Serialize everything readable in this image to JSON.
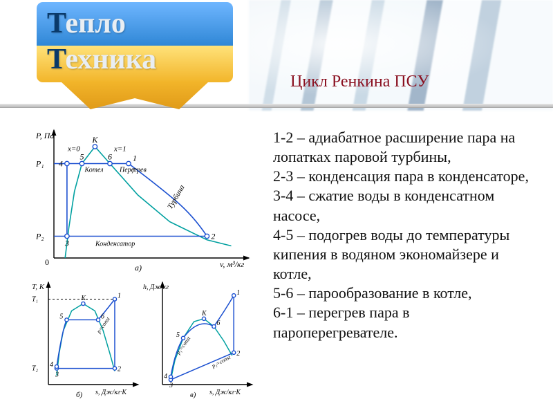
{
  "header": {
    "title1_cap": "Т",
    "title1_rest": "епло",
    "title2_cap": "Т",
    "title2_rest": "ехника",
    "badge_top_color": "#3a8cd8",
    "badge_bottom_color": "#f2b52a",
    "title": "Цикл Ренкина ПСУ",
    "title_color": "#8a1020",
    "title_fontsize": 24
  },
  "steps": {
    "s1": "1-2 – адиабатное расширение пара на лопатках паровой турбины,",
    "s2": "2-3 – конденсация пара в конденсаторе,",
    "s3": "3-4 – сжатие воды в конденсатном насосе,",
    "s4": "4-5 – подогрев воды до температуры кипения в водяном экономайзере и котле,",
    "s5": "5-6 – парообразование в котле,",
    "s6": "6-1 – перегрев пара в пароперегревателе."
  },
  "diagram_a": {
    "type": "pv-diagram",
    "xlabel": "v, м³/кг",
    "ylabel": "P, Па",
    "ylim": [
      0,
      1
    ],
    "xlim": [
      0,
      1
    ],
    "sat_curve_color": "#00a0a0",
    "cycle_color": "#1a4fd0",
    "marker_color": "#1a4fd0",
    "marker_size": 4,
    "line_width": 1.5,
    "p1_y": 0.78,
    "p2_y": 0.18,
    "sat_curve": [
      [
        0.06,
        0.0
      ],
      [
        0.08,
        0.25
      ],
      [
        0.11,
        0.55
      ],
      [
        0.15,
        0.78
      ],
      [
        0.22,
        0.92
      ],
      [
        0.3,
        0.78
      ],
      [
        0.45,
        0.52
      ],
      [
        0.62,
        0.3
      ],
      [
        0.82,
        0.15
      ],
      [
        0.95,
        0.1
      ]
    ],
    "points": {
      "3": [
        0.07,
        0.18
      ],
      "4": [
        0.07,
        0.78
      ],
      "5": [
        0.15,
        0.78
      ],
      "6": [
        0.3,
        0.78
      ],
      "1": [
        0.4,
        0.78
      ],
      "2": [
        0.82,
        0.18
      ],
      "K": [
        0.22,
        0.92
      ],
      "7": [
        0.4,
        0.78
      ]
    },
    "labels": {
      "x0": "x=0",
      "x1": "x=1",
      "kotel": "Котел",
      "peregrev": "Перегрев",
      "turbina": "Турбина",
      "kondensator": "Конденсатор",
      "p1": "P₁",
      "p2": "P₂",
      "K": "К",
      "panel": "а)"
    }
  },
  "diagram_b": {
    "type": "ts-diagram",
    "xlabel": "s, Дж/кг·К",
    "ylabel": "T, К",
    "sat_curve_color": "#00a0a0",
    "cycle_color": "#1a4fd0",
    "sat_curve": [
      [
        0.1,
        0.1
      ],
      [
        0.13,
        0.35
      ],
      [
        0.18,
        0.6
      ],
      [
        0.28,
        0.82
      ],
      [
        0.42,
        0.9
      ],
      [
        0.56,
        0.82
      ],
      [
        0.66,
        0.6
      ],
      [
        0.74,
        0.35
      ],
      [
        0.8,
        0.15
      ]
    ],
    "points": {
      "3": [
        0.1,
        0.18
      ],
      "4": [
        0.1,
        0.2
      ],
      "5": [
        0.22,
        0.72
      ],
      "K": [
        0.42,
        0.9
      ],
      "6": [
        0.6,
        0.72
      ],
      "1": [
        0.8,
        0.95
      ],
      "2": [
        0.8,
        0.18
      ]
    },
    "t1_y": 0.95,
    "t2_y": 0.18,
    "labels": {
      "T1": "T₁",
      "T2": "T₂",
      "K": "К",
      "pconst": "p=const",
      "panel": "б)"
    }
  },
  "diagram_c": {
    "type": "hs-diagram",
    "xlabel": "s, Дж/кг·К",
    "ylabel": "h, Дж/кг",
    "sat_curve_color": "#00a0a0",
    "cycle_color": "#1a4fd0",
    "sat_curve": [
      [
        0.1,
        0.05
      ],
      [
        0.15,
        0.25
      ],
      [
        0.25,
        0.48
      ],
      [
        0.38,
        0.65
      ],
      [
        0.5,
        0.68
      ],
      [
        0.62,
        0.6
      ],
      [
        0.74,
        0.45
      ],
      [
        0.84,
        0.3
      ]
    ],
    "points": {
      "3": [
        0.1,
        0.05
      ],
      "4": [
        0.1,
        0.08
      ],
      "5": [
        0.25,
        0.48
      ],
      "K": [
        0.5,
        0.68
      ],
      "6": [
        0.62,
        0.6
      ],
      "1": [
        0.86,
        0.92
      ],
      "2": [
        0.86,
        0.33
      ]
    },
    "labels": {
      "K": "К",
      "p1const": "p₁=const",
      "p2const": "p₂=const",
      "panel": "в)"
    }
  },
  "style": {
    "axis_color": "#000000",
    "font": "Times New Roman",
    "desc_fontsize": 22,
    "background": "#ffffff"
  }
}
